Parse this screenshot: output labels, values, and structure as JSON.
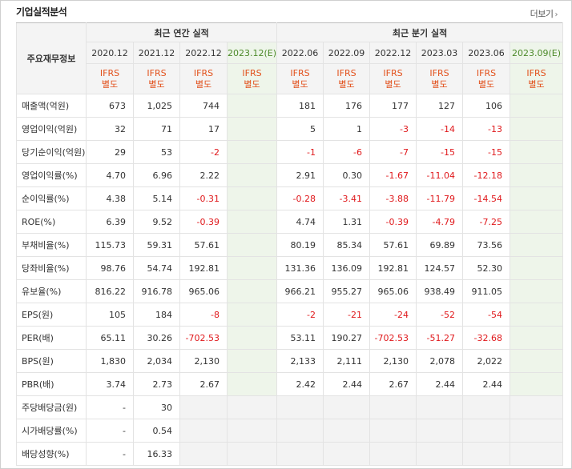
{
  "header": {
    "title": "기업실적분석",
    "more_label": "더보기",
    "more_icon": "chevron-right-icon"
  },
  "table": {
    "label_header": "주요재무정보",
    "group_annual": "최근 연간 실적",
    "group_quarter": "최근 분기 실적",
    "annual_periods": [
      "2020.12",
      "2021.12",
      "2022.12",
      "2023.12(E)"
    ],
    "quarter_periods": [
      "2022.06",
      "2022.09",
      "2022.12",
      "2023.03",
      "2023.06",
      "2023.09(E)"
    ],
    "ifrs_label": "IFRS",
    "ifrs_sub": "별도",
    "rows": [
      {
        "label": "매출액(억원)",
        "annual": [
          "673",
          "1,025",
          "744",
          ""
        ],
        "quarter": [
          "181",
          "176",
          "177",
          "127",
          "106",
          ""
        ]
      },
      {
        "label": "영업이익(억원)",
        "annual": [
          "32",
          "71",
          "17",
          ""
        ],
        "quarter": [
          "5",
          "1",
          "-3",
          "-14",
          "-13",
          ""
        ]
      },
      {
        "label": "당기순이익(억원)",
        "annual": [
          "29",
          "53",
          "-2",
          ""
        ],
        "quarter": [
          "-1",
          "-6",
          "-7",
          "-15",
          "-15",
          ""
        ]
      },
      {
        "label": "영업이익률(%)",
        "annual": [
          "4.70",
          "6.96",
          "2.22",
          ""
        ],
        "quarter": [
          "2.91",
          "0.30",
          "-1.67",
          "-11.04",
          "-12.18",
          ""
        ]
      },
      {
        "label": "순이익률(%)",
        "annual": [
          "4.38",
          "5.14",
          "-0.31",
          ""
        ],
        "quarter": [
          "-0.28",
          "-3.41",
          "-3.88",
          "-11.79",
          "-14.54",
          ""
        ]
      },
      {
        "label": "ROE(%)",
        "annual": [
          "6.39",
          "9.52",
          "-0.39",
          ""
        ],
        "quarter": [
          "4.74",
          "1.31",
          "-0.39",
          "-4.79",
          "-7.25",
          ""
        ]
      },
      {
        "label": "부채비율(%)",
        "annual": [
          "115.73",
          "59.31",
          "57.61",
          ""
        ],
        "quarter": [
          "80.19",
          "85.34",
          "57.61",
          "69.89",
          "73.56",
          ""
        ]
      },
      {
        "label": "당좌비율(%)",
        "annual": [
          "98.76",
          "54.74",
          "192.81",
          ""
        ],
        "quarter": [
          "131.36",
          "136.09",
          "192.81",
          "124.57",
          "52.30",
          ""
        ]
      },
      {
        "label": "유보율(%)",
        "annual": [
          "816.22",
          "916.78",
          "965.06",
          ""
        ],
        "quarter": [
          "966.21",
          "955.27",
          "965.06",
          "938.49",
          "911.05",
          ""
        ]
      },
      {
        "label": "EPS(원)",
        "annual": [
          "105",
          "184",
          "-8",
          ""
        ],
        "quarter": [
          "-2",
          "-21",
          "-24",
          "-52",
          "-54",
          ""
        ]
      },
      {
        "label": "PER(배)",
        "annual": [
          "65.11",
          "30.26",
          "-702.53",
          ""
        ],
        "quarter": [
          "53.11",
          "190.27",
          "-702.53",
          "-51.27",
          "-32.68",
          ""
        ]
      },
      {
        "label": "BPS(원)",
        "annual": [
          "1,830",
          "2,034",
          "2,130",
          ""
        ],
        "quarter": [
          "2,133",
          "2,111",
          "2,130",
          "2,078",
          "2,022",
          ""
        ]
      },
      {
        "label": "PBR(배)",
        "annual": [
          "3.74",
          "2.73",
          "2.67",
          ""
        ],
        "quarter": [
          "2.42",
          "2.44",
          "2.67",
          "2.44",
          "2.44",
          ""
        ]
      },
      {
        "label": "주당배당금(원)",
        "annual": [
          "-",
          "30",
          null,
          null
        ],
        "quarter": [
          null,
          null,
          null,
          null,
          null,
          null
        ]
      },
      {
        "label": "시가배당률(%)",
        "annual": [
          "-",
          "0.54",
          null,
          null
        ],
        "quarter": [
          null,
          null,
          null,
          null,
          null,
          null
        ]
      },
      {
        "label": "배당성향(%)",
        "annual": [
          "-",
          "16.33",
          null,
          null
        ],
        "quarter": [
          null,
          null,
          null,
          null,
          null,
          null
        ]
      }
    ]
  }
}
